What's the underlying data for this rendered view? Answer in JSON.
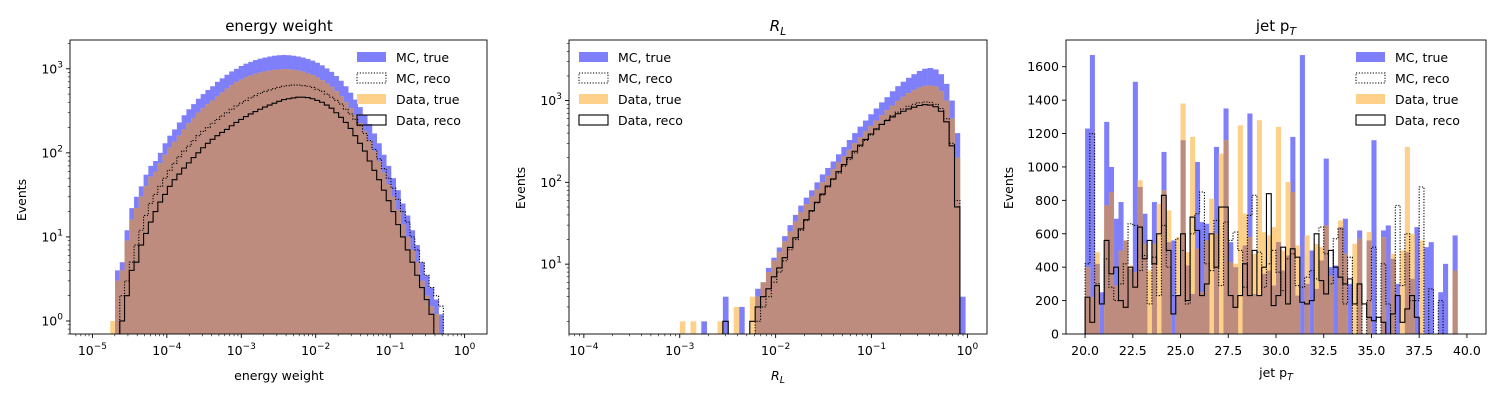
{
  "figure": {
    "colors": {
      "mc_true": "#7f7ffa",
      "data_true": "#fdd18a",
      "overlap": "#bd8c7e",
      "reco_line": "#000000"
    },
    "legend": [
      "MC, true",
      "MC, reco",
      "Data, true",
      "Data, reco"
    ]
  },
  "chart_data": [
    {
      "type": "histogram",
      "title": "energy weight",
      "xlabel": "energy weight",
      "ylabel": "Events",
      "xscale": "log",
      "yscale": "log",
      "xlim": [
        5e-06,
        2.0
      ],
      "ylim": [
        0.7,
        2200
      ],
      "x_ticks": [
        {
          "value": 1e-05,
          "base": "10",
          "exp": "−5"
        },
        {
          "value": 0.0001,
          "base": "10",
          "exp": "−4"
        },
        {
          "value": 0.001,
          "base": "10",
          "exp": "−3"
        },
        {
          "value": 0.01,
          "base": "10",
          "exp": "−2"
        },
        {
          "value": 0.1,
          "base": "10",
          "exp": "−1"
        },
        {
          "value": 1,
          "base": "10",
          "exp": "0"
        }
      ],
      "y_ticks": [
        {
          "value": 1,
          "base": "10",
          "exp": "0"
        },
        {
          "value": 10,
          "base": "10",
          "exp": "1"
        },
        {
          "value": 100,
          "base": "10",
          "exp": "2"
        },
        {
          "value": 1000,
          "base": "10",
          "exp": "3"
        }
      ],
      "legend_loc": "upper right",
      "bin_range": [
        1.5e-05,
        0.6
      ],
      "series": [
        {
          "name": "MC, true",
          "style": "filled",
          "color": "#7f7ffa",
          "values": [
            0,
            0,
            4,
            5,
            12,
            22,
            30,
            40,
            55,
            70,
            80,
            100,
            130,
            160,
            190,
            230,
            280,
            330,
            380,
            440,
            500,
            560,
            620,
            700,
            770,
            850,
            930,
            1000,
            1080,
            1150,
            1210,
            1270,
            1320,
            1360,
            1400,
            1430,
            1450,
            1460,
            1450,
            1430,
            1400,
            1360,
            1310,
            1250,
            1180,
            1100,
            1010,
            920,
            820,
            720,
            620,
            520,
            430,
            350,
            280,
            220,
            170,
            130,
            95,
            70,
            50,
            36,
            25,
            18,
            12,
            8,
            5,
            3.5,
            2.5,
            1.8,
            1.2,
            0
          ]
        },
        {
          "name": "MC, reco",
          "style": "dotted",
          "color": "#000000",
          "values": [
            0,
            0,
            0,
            2,
            3,
            5,
            8,
            12,
            18,
            25,
            32,
            40,
            50,
            62,
            75,
            90,
            105,
            120,
            140,
            160,
            180,
            200,
            225,
            250,
            275,
            300,
            330,
            360,
            390,
            420,
            450,
            480,
            510,
            540,
            560,
            580,
            600,
            620,
            630,
            640,
            640,
            630,
            620,
            600,
            570,
            540,
            500,
            460,
            420,
            380,
            330,
            290,
            250,
            210,
            170,
            140,
            110,
            85,
            65,
            50,
            38,
            28,
            20,
            15,
            10,
            7,
            5,
            3.5,
            2.5,
            2,
            1.5,
            0
          ]
        },
        {
          "name": "Data, true",
          "style": "filled",
          "color": "#fdd18a",
          "values": [
            0,
            1,
            3,
            4,
            9,
            16,
            22,
            30,
            40,
            52,
            60,
            75,
            95,
            115,
            135,
            160,
            190,
            225,
            260,
            300,
            340,
            380,
            420,
            470,
            520,
            580,
            640,
            690,
            740,
            790,
            830,
            870,
            900,
            930,
            950,
            970,
            980,
            990,
            985,
            970,
            950,
            920,
            880,
            840,
            790,
            730,
            670,
            610,
            540,
            470,
            400,
            340,
            280,
            225,
            180,
            140,
            105,
            80,
            58,
            42,
            30,
            21,
            14,
            10,
            7,
            5,
            3,
            2,
            1.5,
            1.2,
            0,
            0
          ]
        },
        {
          "name": "Data, reco",
          "style": "step",
          "color": "#000000",
          "values": [
            0,
            0,
            0,
            1,
            2,
            4,
            5,
            8,
            11,
            15,
            20,
            26,
            32,
            40,
            48,
            56,
            66,
            76,
            88,
            100,
            115,
            130,
            145,
            160,
            175,
            190,
            210,
            230,
            250,
            270,
            290,
            310,
            330,
            350,
            370,
            390,
            410,
            430,
            440,
            450,
            460,
            460,
            455,
            440,
            420,
            400,
            370,
            340,
            300,
            265,
            230,
            195,
            160,
            130,
            105,
            80,
            62,
            48,
            36,
            27,
            20,
            14,
            10,
            7,
            5,
            3.5,
            2.5,
            1.8,
            1.2,
            0,
            0,
            0
          ]
        }
      ]
    },
    {
      "type": "histogram",
      "title_main": "R",
      "title_sub": "L",
      "xlabel_main": "R",
      "xlabel_sub": "L",
      "ylabel": "Events",
      "xscale": "log",
      "yscale": "log",
      "xlim": [
        7e-05,
        1.6
      ],
      "ylim": [
        1.4,
        5500
      ],
      "x_ticks": [
        {
          "value": 0.0001,
          "base": "10",
          "exp": "−4"
        },
        {
          "value": 0.001,
          "base": "10",
          "exp": "−3"
        },
        {
          "value": 0.01,
          "base": "10",
          "exp": "−2"
        },
        {
          "value": 0.1,
          "base": "10",
          "exp": "−1"
        },
        {
          "value": 1,
          "base": "10",
          "exp": "0"
        }
      ],
      "y_ticks": [
        {
          "value": 10,
          "base": "10",
          "exp": "1"
        },
        {
          "value": 100,
          "base": "10",
          "exp": "2"
        },
        {
          "value": 1000,
          "base": "10",
          "exp": "3"
        }
      ],
      "legend_loc": "upper left",
      "bin_range": [
        0.001,
        0.95
      ],
      "series": [
        {
          "name": "MC, true",
          "style": "filled",
          "color": "#7f7ffa",
          "values": [
            0,
            0,
            0,
            0,
            2,
            0,
            0,
            0,
            4,
            0,
            0,
            3,
            0,
            0,
            5,
            6,
            9,
            12,
            16,
            22,
            30,
            40,
            52,
            65,
            80,
            100,
            125,
            150,
            180,
            220,
            270,
            330,
            400,
            480,
            570,
            680,
            800,
            950,
            1100,
            1300,
            1500,
            1700,
            1900,
            2100,
            2300,
            2450,
            2500,
            2400,
            2100,
            1600,
            1000,
            400,
            4
          ]
        },
        {
          "name": "MC, reco",
          "style": "dotted",
          "color": "#000000",
          "values": [
            0,
            0,
            0,
            0,
            0,
            0,
            0,
            0,
            0,
            0,
            0,
            0,
            0,
            0,
            2,
            3,
            4,
            6,
            8,
            11,
            15,
            20,
            26,
            34,
            44,
            56,
            70,
            88,
            108,
            130,
            158,
            190,
            230,
            275,
            325,
            380,
            440,
            510,
            580,
            650,
            720,
            790,
            850,
            900,
            940,
            960,
            950,
            900,
            800,
            600,
            300,
            60,
            0
          ]
        },
        {
          "name": "Data, true",
          "style": "filled",
          "color": "#fdd18a",
          "values": [
            2,
            0,
            2,
            0,
            0,
            0,
            0,
            2,
            0,
            0,
            3,
            0,
            0,
            4,
            4,
            6,
            8,
            11,
            14,
            19,
            25,
            33,
            43,
            54,
            67,
            82,
            100,
            120,
            145,
            175,
            210,
            250,
            300,
            355,
            420,
            490,
            570,
            660,
            760,
            870,
            990,
            1110,
            1230,
            1340,
            1440,
            1510,
            1530,
            1480,
            1300,
            1000,
            600,
            200,
            0
          ]
        },
        {
          "name": "Data, reco",
          "style": "step",
          "color": "#000000",
          "values": [
            0,
            0,
            0,
            0,
            0,
            0,
            0,
            0,
            2,
            0,
            0,
            0,
            0,
            2,
            3,
            4,
            5,
            7,
            9,
            12,
            16,
            21,
            27,
            35,
            45,
            57,
            72,
            90,
            110,
            135,
            165,
            200,
            240,
            285,
            335,
            390,
            450,
            510,
            570,
            630,
            690,
            740,
            790,
            830,
            870,
            890,
            880,
            840,
            740,
            550,
            280,
            50,
            0
          ]
        }
      ]
    },
    {
      "type": "histogram",
      "title_main": "jet p",
      "title_sub": "T",
      "xlabel_main": "jet p",
      "xlabel_sub": "T",
      "ylabel": "Events",
      "xscale": "linear",
      "yscale": "linear",
      "xlim": [
        19.0,
        41.0
      ],
      "ylim": [
        0,
        1760
      ],
      "x_ticks": [
        {
          "value": 20.0,
          "label": "20.0"
        },
        {
          "value": 22.5,
          "label": "22.5"
        },
        {
          "value": 25.0,
          "label": "25.0"
        },
        {
          "value": 27.5,
          "label": "27.5"
        },
        {
          "value": 30.0,
          "label": "30.0"
        },
        {
          "value": 32.5,
          "label": "32.5"
        },
        {
          "value": 35.0,
          "label": "35.0"
        },
        {
          "value": 37.5,
          "label": "37.5"
        },
        {
          "value": 40.0,
          "label": "40.0"
        }
      ],
      "y_ticks": [
        {
          "value": 0,
          "label": "0"
        },
        {
          "value": 200,
          "label": "200"
        },
        {
          "value": 400,
          "label": "400"
        },
        {
          "value": 600,
          "label": "600"
        },
        {
          "value": 800,
          "label": "800"
        },
        {
          "value": 1000,
          "label": "1000"
        },
        {
          "value": 1200,
          "label": "1200"
        },
        {
          "value": 1400,
          "label": "1400"
        },
        {
          "value": 1600,
          "label": "1600"
        }
      ],
      "legend_loc": "upper right",
      "bin_range": [
        20.0,
        40.0
      ],
      "series": [
        {
          "name": "MC, true",
          "style": "filled",
          "color": "#7f7ffa",
          "values": [
            1230,
            1670,
            420,
            250,
            1270,
            1000,
            690,
            790,
            560,
            390,
            1510,
            880,
            720,
            0,
            790,
            0,
            1090,
            550,
            560,
            230,
            1160,
            410,
            240,
            1030,
            670,
            660,
            0,
            1120,
            0,
            1350,
            550,
            400,
            0,
            530,
            1320,
            240,
            230,
            360,
            380,
            290,
            550,
            380,
            470,
            1180,
            230,
            1670,
            300,
            500,
            270,
            440,
            1050,
            400,
            410,
            640,
            690,
            300,
            0,
            620,
            0,
            560,
            1160,
            0,
            620,
            650,
            450,
            300,
            0,
            490,
            330,
            640,
            0,
            520,
            550,
            0,
            250,
            420,
            0,
            590,
            0,
            0
          ]
        },
        {
          "name": "MC, reco",
          "style": "dotted",
          "color": "#000000",
          "values": [
            420,
            1200,
            300,
            180,
            450,
            280,
            200,
            300,
            420,
            660,
            650,
            380,
            470,
            180,
            460,
            230,
            650,
            400,
            230,
            570,
            500,
            180,
            600,
            720,
            850,
            420,
            380,
            680,
            290,
            670,
            560,
            610,
            500,
            280,
            710,
            830,
            490,
            280,
            420,
            500,
            370,
            260,
            450,
            480,
            290,
            280,
            340,
            380,
            330,
            640,
            480,
            300,
            570,
            630,
            180,
            460,
            0,
            300,
            0,
            200,
            520,
            0,
            420,
            180,
            0,
            770,
            290,
            600,
            200,
            200,
            880,
            0,
            270,
            0,
            200,
            0,
            0,
            0,
            0,
            0
          ]
        },
        {
          "name": "Data, true",
          "style": "filled",
          "color": "#fdd18a",
          "values": [
            400,
            220,
            490,
            0,
            770,
            850,
            290,
            500,
            560,
            410,
            370,
            920,
            540,
            380,
            540,
            780,
            860,
            740,
            0,
            580,
            1380,
            490,
            1180,
            510,
            250,
            560,
            810,
            600,
            1080,
            1160,
            430,
            420,
            1250,
            720,
            580,
            480,
            1280,
            610,
            590,
            640,
            1240,
            500,
            910,
            850,
            530,
            0,
            590,
            0,
            540,
            520,
            650,
            350,
            0,
            680,
            480,
            0,
            540,
            570,
            0,
            610,
            0,
            0,
            580,
            0,
            480,
            0,
            500,
            1120,
            600,
            0,
            560,
            0,
            0,
            0,
            0,
            0,
            0,
            380,
            0,
            0
          ]
        },
        {
          "name": "Data, reco",
          "style": "step",
          "color": "#000000",
          "values": [
            220,
            70,
            290,
            180,
            560,
            360,
            400,
            200,
            160,
            400,
            280,
            640,
            450,
            560,
            420,
            600,
            830,
            500,
            120,
            230,
            600,
            200,
            700,
            620,
            230,
            300,
            600,
            400,
            760,
            760,
            230,
            160,
            230,
            420,
            230,
            500,
            230,
            400,
            840,
            170,
            230,
            520,
            180,
            510,
            460,
            190,
            180,
            200,
            600,
            320,
            240,
            500,
            400,
            340,
            300,
            330,
            180,
            300,
            180,
            100,
            80,
            100,
            70,
            0,
            120,
            230,
            70,
            150,
            230,
            100,
            0,
            0,
            0,
            0,
            0,
            0,
            0,
            0,
            0,
            0
          ]
        }
      ]
    }
  ]
}
